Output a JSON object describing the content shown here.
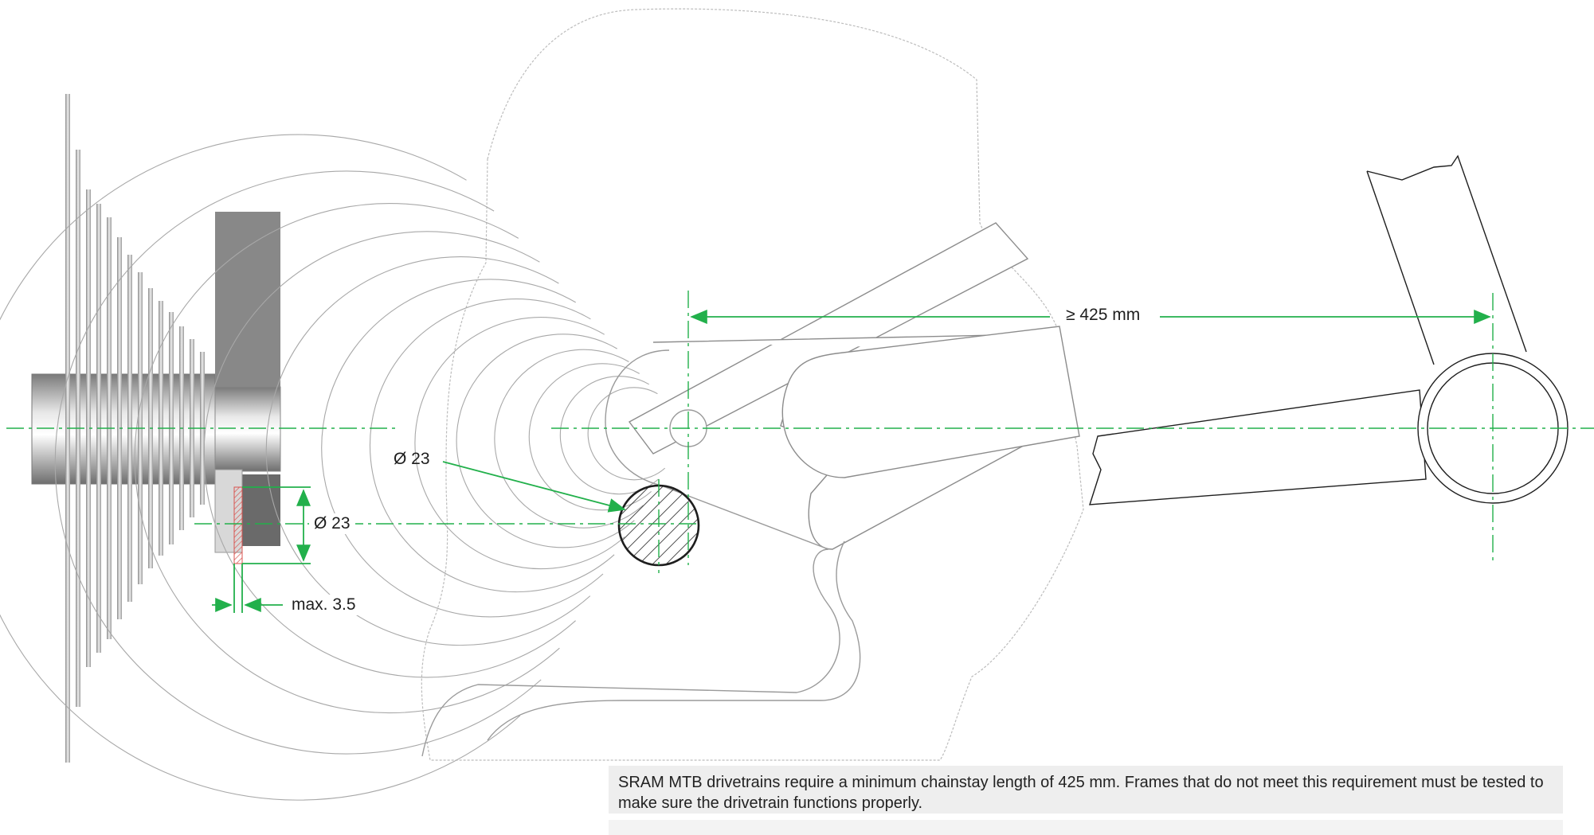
{
  "labels": {
    "chainstay_length": "≥ 425 mm",
    "tire_clearance_diameter": "Ø 23",
    "hub_clearance_diameter": "Ø 23",
    "max_offset": "max. 3.5"
  },
  "note": {
    "text": "SRAM MTB drivetrains require a minimum chainstay length of 425 mm. Frames that do not meet this requirement must be tested to make sure the drivetrain functions properly."
  },
  "colors": {
    "dimension_line": "#22b04b",
    "outline": "#1e1e1e",
    "faint_outline": "#8c8c8c",
    "clearance_hatch": "#d9534f",
    "note_background": "#eeeeee"
  }
}
